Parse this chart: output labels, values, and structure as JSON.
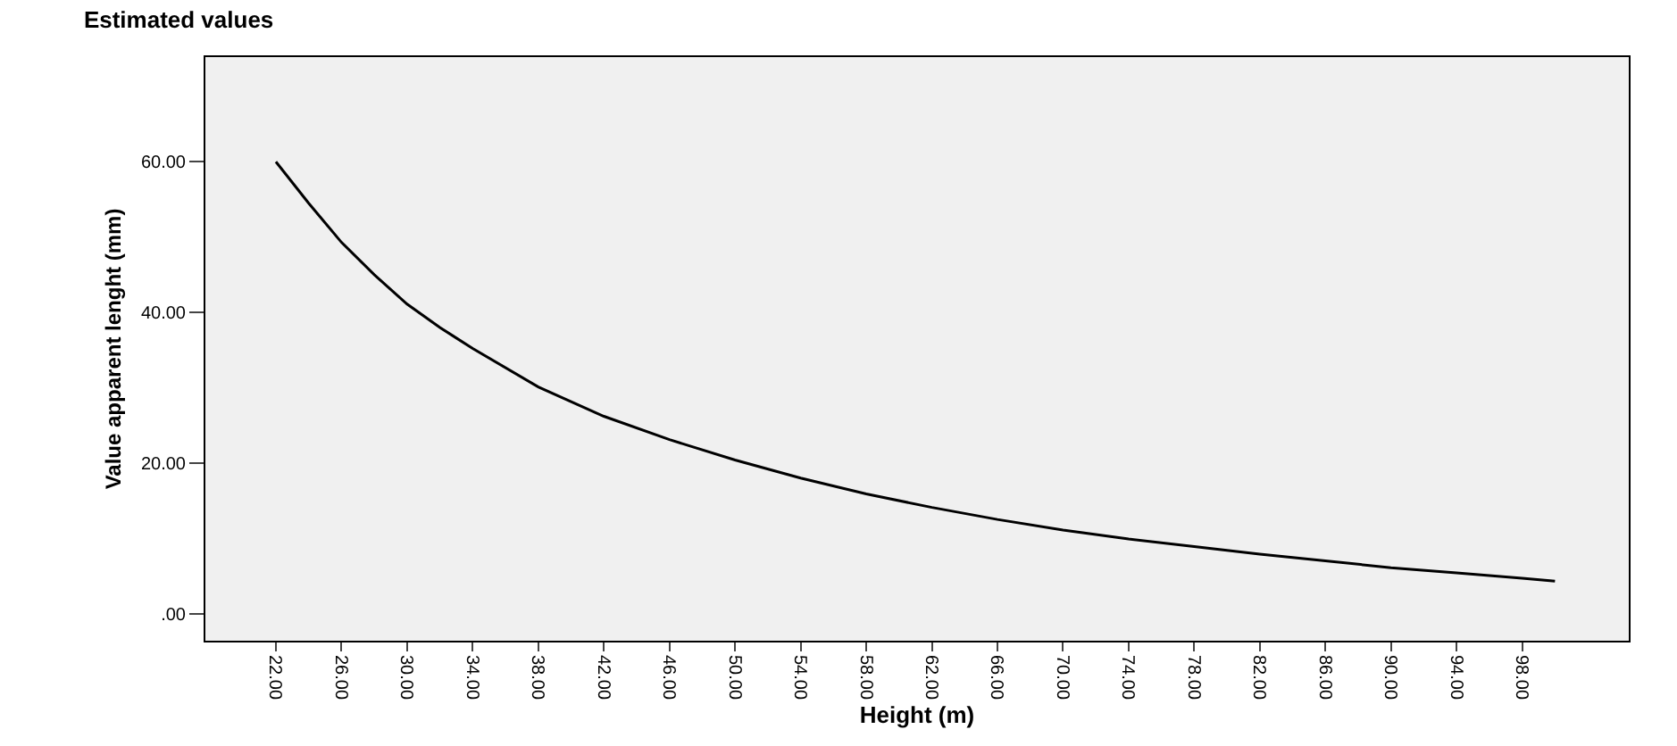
{
  "chart_data": {
    "type": "line",
    "title": "Estimated values",
    "xlabel": "Height (m)",
    "ylabel": "Value apparent lenght (mm)",
    "x": [
      22,
      24,
      26,
      28,
      30,
      32,
      34,
      38,
      42,
      46,
      50,
      54,
      58,
      62,
      66,
      70,
      74,
      78,
      82,
      86,
      90,
      94,
      98,
      100
    ],
    "series": [
      {
        "color": "#000000",
        "values": [
          60,
          54.5,
          49.3,
          45,
          41.1,
          38,
          35.2,
          30.1,
          26.2,
          23.1,
          20.4,
          18,
          15.9,
          14.1,
          12.5,
          11.1,
          9.9,
          8.9,
          7.9,
          7,
          6.1,
          5.4,
          4.7,
          4.3
        ]
      }
    ],
    "xlim": [
      17.7,
      104.5
    ],
    "ylim": [
      -3.6,
      73.9
    ],
    "xticks": [
      {
        "value": 22,
        "label": "22.00"
      },
      {
        "value": 26,
        "label": "26.00"
      },
      {
        "value": 30,
        "label": "30.00"
      },
      {
        "value": 34,
        "label": "34.00"
      },
      {
        "value": 38,
        "label": "38.00"
      },
      {
        "value": 42,
        "label": "42.00"
      },
      {
        "value": 46,
        "label": "46.00"
      },
      {
        "value": 50,
        "label": "50.00"
      },
      {
        "value": 54,
        "label": "54.00"
      },
      {
        "value": 58,
        "label": "58.00"
      },
      {
        "value": 62,
        "label": "62.00"
      },
      {
        "value": 66,
        "label": "66.00"
      },
      {
        "value": 70,
        "label": "70.00"
      },
      {
        "value": 74,
        "label": "74.00"
      },
      {
        "value": 78,
        "label": "78.00"
      },
      {
        "value": 82,
        "label": "82.00"
      },
      {
        "value": 86,
        "label": "86.00"
      },
      {
        "value": 90,
        "label": "90.00"
      },
      {
        "value": 94,
        "label": "94.00"
      },
      {
        "value": 98,
        "label": "98.00"
      }
    ],
    "yticks": [
      {
        "value": 0,
        "label": ".00"
      },
      {
        "value": 20,
        "label": "20.00"
      },
      {
        "value": 40,
        "label": "40.00"
      },
      {
        "value": 60,
        "label": "60.00"
      }
    ],
    "grid": false,
    "marker": "none",
    "line_style": "solid"
  }
}
